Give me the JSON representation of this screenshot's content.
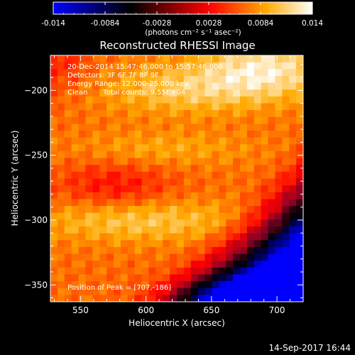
{
  "colorbar": {
    "ticks": [
      "-0.014",
      "-0.0084",
      "-0.0028",
      "0.0028",
      "0.0084",
      "0.014"
    ],
    "tick_values": [
      -0.014,
      -0.0084,
      -0.0028,
      0.0028,
      0.0084,
      0.014
    ],
    "range": [
      -0.014,
      0.014
    ],
    "unit_label": "(photons cm⁻² s⁻¹ asec⁻²)",
    "colors": [
      "#0000ff",
      "#000000",
      "#ff0000",
      "#ffaa00",
      "#ffffff"
    ]
  },
  "chart_data": {
    "type": "heatmap",
    "title": "Reconstructed RHESSI Image",
    "xlabel": "Heliocentric X (arcsec)",
    "ylabel": "Heliocentric Y (arcsec)",
    "xlim": [
      527,
      720
    ],
    "ylim": [
      -363,
      -173
    ],
    "xticks": [
      550,
      600,
      650,
      700
    ],
    "yticks": [
      -200,
      -250,
      -300,
      -350
    ],
    "annotations": {
      "time": "20-Dec-2014 15:47:46.000 to 15:57:46.000",
      "detectors": "Detectors: 3F 6F 7F 8F 9F",
      "energy": "Energy Range: 12.000-25.000 keV",
      "method": "Clean",
      "total_counts": "Total counts: 9.55E+04",
      "peak": "Position of Peak = [707,-186]"
    },
    "peak": [
      707,
      -186
    ]
  },
  "footer": {
    "date": "14-Sep-2017 16:44"
  }
}
